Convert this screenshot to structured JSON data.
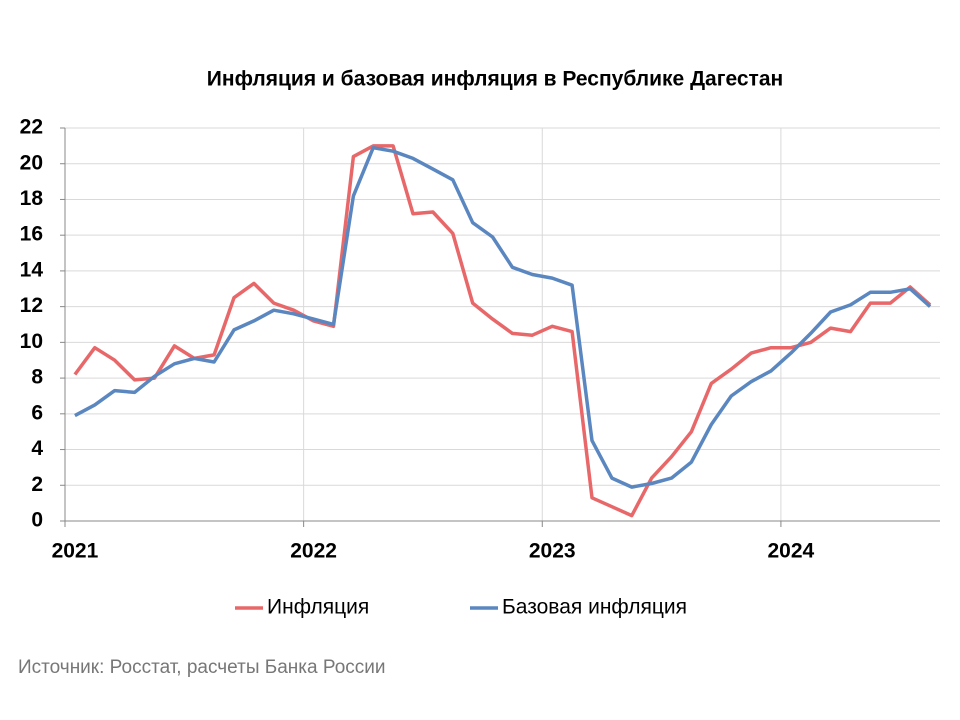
{
  "chart_data": {
    "type": "line",
    "title": "Инфляция и базовая инфляция в Республике Дагестан",
    "source": "Источник: Росстат, расчеты Банка России",
    "categories": [
      "2021",
      null,
      null,
      null,
      null,
      null,
      null,
      null,
      null,
      null,
      null,
      null,
      "2022",
      null,
      null,
      null,
      null,
      null,
      null,
      null,
      null,
      null,
      null,
      null,
      "2023",
      null,
      null,
      null,
      null,
      null,
      null,
      null,
      null,
      null,
      null,
      null,
      "2024",
      null,
      null,
      null,
      null,
      null,
      null,
      null
    ],
    "series": [
      {
        "name": "Инфляция",
        "color": "#e8686a",
        "values": [
          8.2,
          9.7,
          9.0,
          7.9,
          8.0,
          9.8,
          9.1,
          9.3,
          12.5,
          13.3,
          12.2,
          11.8,
          11.2,
          10.9,
          20.4,
          21.0,
          21.0,
          17.2,
          17.3,
          16.1,
          12.2,
          11.3,
          10.5,
          10.4,
          10.9,
          10.6,
          1.3,
          0.8,
          0.3,
          2.4,
          3.6,
          5.0,
          7.7,
          8.5,
          9.4,
          9.7,
          9.7,
          10.0,
          10.8,
          10.6,
          12.2,
          12.2,
          13.1,
          12.1
        ]
      },
      {
        "name": "Базовая инфляция",
        "color": "#5b87c0",
        "values": [
          5.9,
          6.5,
          7.3,
          7.2,
          8.1,
          8.8,
          9.1,
          8.9,
          10.7,
          11.2,
          11.8,
          11.6,
          11.3,
          11.0,
          18.2,
          20.9,
          20.7,
          20.3,
          19.7,
          19.1,
          16.7,
          15.9,
          14.2,
          13.8,
          13.6,
          13.2,
          4.5,
          2.4,
          1.9,
          2.1,
          2.4,
          3.3,
          5.4,
          7.0,
          7.8,
          8.4,
          9.4,
          10.5,
          11.7,
          12.1,
          12.8,
          12.8,
          13.0,
          12.0
        ]
      }
    ],
    "ylim": [
      0,
      22
    ],
    "yticks": [
      0,
      2,
      4,
      6,
      8,
      10,
      12,
      14,
      16,
      18,
      20,
      22
    ],
    "grid": true,
    "legend": "bottom"
  }
}
